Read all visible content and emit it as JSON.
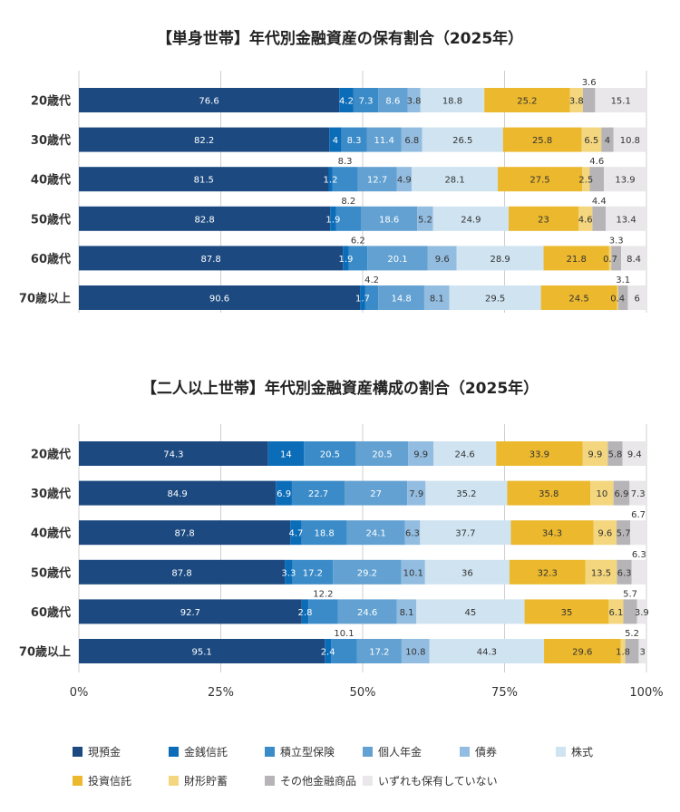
{
  "chart_data": [
    {
      "type": "bar",
      "orientation": "horizontal",
      "stacked": true,
      "normalized": true,
      "title": "【単身世帯】年代別金融資産の保有割合（2025年）",
      "categories": [
        "20歳代",
        "30歳代",
        "40歳代",
        "50歳代",
        "60歳代",
        "70歳以上"
      ],
      "series": [
        {
          "name": "現預金",
          "color": "#1c4a80",
          "values": [
            76.6,
            82.2,
            81.5,
            82.8,
            87.8,
            90.6
          ]
        },
        {
          "name": "金銭信託",
          "color": "#0b6cb8",
          "values": [
            4.2,
            4,
            1.2,
            1.9,
            1.9,
            1.7
          ]
        },
        {
          "name": "積立型保険",
          "color": "#3a8bc8",
          "values": [
            7.3,
            8.3,
            8.3,
            8.2,
            6.2,
            4.2
          ]
        },
        {
          "name": "個人年金",
          "color": "#62a1d2",
          "values": [
            8.6,
            11.4,
            12.7,
            18.6,
            20.1,
            14.8
          ]
        },
        {
          "name": "債券",
          "color": "#93bde0",
          "values": [
            3.8,
            6.8,
            4.9,
            5.2,
            9.6,
            8.1
          ]
        },
        {
          "name": "株式",
          "color": "#cfe3f1",
          "values": [
            18.8,
            26.5,
            28.1,
            24.9,
            28.9,
            29.5
          ]
        },
        {
          "name": "投資信託",
          "color": "#ebb82e",
          "values": [
            25.2,
            25.8,
            27.5,
            23,
            21.8,
            24.5
          ]
        },
        {
          "name": "財形貯蓄",
          "color": "#f3d67d",
          "values": [
            3.8,
            6.5,
            2.5,
            4.6,
            0.7,
            0.4
          ]
        },
        {
          "name": "その他金融商品",
          "color": "#b6b4b7",
          "values": [
            3.6,
            4,
            4.6,
            4.4,
            3.3,
            3.1
          ]
        },
        {
          "name": "いずれも保有していない",
          "color": "#e9e7e9",
          "values": [
            15.1,
            10.8,
            13.9,
            13.4,
            8.4,
            6
          ]
        }
      ]
    },
    {
      "type": "bar",
      "orientation": "horizontal",
      "stacked": true,
      "normalized": true,
      "title": "【二人以上世帯】年代別金融資産構成の割合（2025年）",
      "categories": [
        "20歳代",
        "30歳代",
        "40歳代",
        "50歳代",
        "60歳代",
        "70歳以上"
      ],
      "series": [
        {
          "name": "現預金",
          "color": "#1c4a80",
          "values": [
            74.3,
            84.9,
            87.8,
            87.8,
            92.7,
            95.1
          ]
        },
        {
          "name": "金銭信託",
          "color": "#0b6cb8",
          "values": [
            14,
            6.9,
            4.7,
            3.3,
            2.8,
            2.4
          ]
        },
        {
          "name": "積立型保険",
          "color": "#3a8bc8",
          "values": [
            20.5,
            22.7,
            18.8,
            17.2,
            12.2,
            10.1
          ]
        },
        {
          "name": "個人年金",
          "color": "#62a1d2",
          "values": [
            20.5,
            27,
            24.1,
            29.2,
            24.6,
            17.2
          ]
        },
        {
          "name": "債券",
          "color": "#93bde0",
          "values": [
            9.9,
            7.9,
            6.3,
            10.1,
            8.1,
            10.8
          ]
        },
        {
          "name": "株式",
          "color": "#cfe3f1",
          "values": [
            24.6,
            35.2,
            37.7,
            36,
            45,
            44.3
          ]
        },
        {
          "name": "投資信託",
          "color": "#ebb82e",
          "values": [
            33.9,
            35.8,
            34.3,
            32.3,
            35,
            29.6
          ]
        },
        {
          "name": "財形貯蓄",
          "color": "#f3d67d",
          "values": [
            9.9,
            10,
            9.6,
            13.5,
            6.1,
            1.8
          ]
        },
        {
          "name": "その他金融商品",
          "color": "#b6b4b7",
          "values": [
            5.8,
            6.9,
            5.7,
            6.3,
            5.7,
            5.2
          ]
        },
        {
          "name": "いずれも保有していない",
          "color": "#e9e7e9",
          "values": [
            9.4,
            7.3,
            6.7,
            6.3,
            3.9,
            3
          ]
        }
      ]
    }
  ],
  "x_axis": {
    "ticks": [
      "0%",
      "25%",
      "50%",
      "75%",
      "100%"
    ],
    "range": [
      0,
      100
    ],
    "grid": true
  },
  "legend": {
    "placement": "bottom"
  }
}
